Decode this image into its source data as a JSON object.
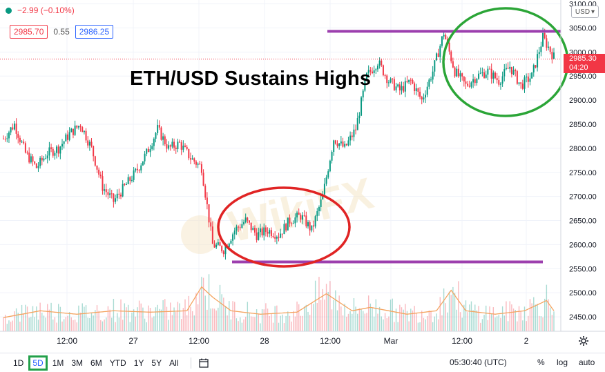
{
  "header": {
    "change_text": "−2.99 (−0.10%)",
    "bid_price": "2985.70",
    "spread": "0.55",
    "ask_price": "2986.25",
    "headline": "ETH/USD Sustains Highs",
    "currency": "USD"
  },
  "price_tag": {
    "price": "2985.30",
    "countdown": "04:20"
  },
  "watermark": "WikiFX",
  "toolbar": {
    "timeframes": [
      "1D",
      "5D",
      "1M",
      "3M",
      "6M",
      "YTD",
      "1Y",
      "5Y",
      "All"
    ],
    "active_timeframe": "5D",
    "clock": "05:30:40 (UTC)",
    "percent_label": "%",
    "log_label": "log",
    "auto_label": "auto"
  },
  "colors": {
    "up": "#089981",
    "down": "#f23645",
    "resistance_line": "#9c3fae",
    "support_line": "#9c3fae",
    "high_circle": "#2ba537",
    "low_circle": "#e02424",
    "volume_ma": "#f4a460",
    "active_timeframe_outline": "#22a04a"
  },
  "chart_data": {
    "type": "candlestick",
    "symbol": "ETH/USD",
    "y_ticks": [
      3100,
      3050,
      3000,
      2950,
      2900,
      2850,
      2800,
      2750,
      2700,
      2650,
      2600,
      2550,
      2500,
      2450
    ],
    "ylim": [
      2420,
      3108
    ],
    "x_ticks": [
      "12:00",
      "27",
      "12:00",
      "28",
      "12:00",
      "Mar",
      "12:00",
      "2"
    ],
    "price_path": [
      [
        0,
        2820
      ],
      [
        3,
        2850
      ],
      [
        6,
        2790
      ],
      [
        9,
        2760
      ],
      [
        12,
        2790
      ],
      [
        15,
        2800
      ],
      [
        18,
        2830
      ],
      [
        21,
        2850
      ],
      [
        24,
        2800
      ],
      [
        27,
        2720
      ],
      [
        30,
        2690
      ],
      [
        33,
        2720
      ],
      [
        36,
        2750
      ],
      [
        39,
        2790
      ],
      [
        42,
        2840
      ],
      [
        45,
        2800
      ],
      [
        48,
        2810
      ],
      [
        51,
        2780
      ],
      [
        54,
        2760
      ],
      [
        57,
        2600
      ],
      [
        60,
        2590
      ],
      [
        63,
        2630
      ],
      [
        66,
        2650
      ],
      [
        69,
        2620
      ],
      [
        72,
        2630
      ],
      [
        75,
        2620
      ],
      [
        78,
        2650
      ],
      [
        81,
        2660
      ],
      [
        84,
        2630
      ],
      [
        87,
        2700
      ],
      [
        90,
        2820
      ],
      [
        93,
        2800
      ],
      [
        96,
        2840
      ],
      [
        99,
        2950
      ],
      [
        102,
        2980
      ],
      [
        105,
        2940
      ],
      [
        108,
        2920
      ],
      [
        111,
        2940
      ],
      [
        114,
        2900
      ],
      [
        117,
        2960
      ],
      [
        120,
        3040
      ],
      [
        123,
        2960
      ],
      [
        126,
        2930
      ],
      [
        129,
        2950
      ],
      [
        132,
        2960
      ],
      [
        135,
        2940
      ],
      [
        138,
        2970
      ],
      [
        141,
        2930
      ],
      [
        144,
        2950
      ],
      [
        147,
        3030
      ],
      [
        150,
        2990
      ]
    ],
    "last_index": 150,
    "resistance_level": 3043,
    "support_level": 2564,
    "volume_profile": [
      [
        0,
        0.2
      ],
      [
        10,
        0.3
      ],
      [
        20,
        0.25
      ],
      [
        30,
        0.3
      ],
      [
        40,
        0.28
      ],
      [
        50,
        0.3
      ],
      [
        54,
        0.65
      ],
      [
        57,
        0.5
      ],
      [
        62,
        0.3
      ],
      [
        70,
        0.25
      ],
      [
        80,
        0.28
      ],
      [
        88,
        0.55
      ],
      [
        95,
        0.3
      ],
      [
        100,
        0.35
      ],
      [
        110,
        0.25
      ],
      [
        118,
        0.3
      ],
      [
        122,
        0.6
      ],
      [
        126,
        0.3
      ],
      [
        134,
        0.25
      ],
      [
        142,
        0.3
      ],
      [
        148,
        0.45
      ],
      [
        150,
        0.3
      ]
    ]
  }
}
